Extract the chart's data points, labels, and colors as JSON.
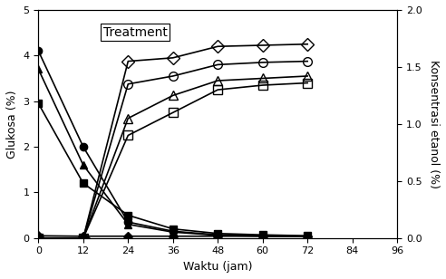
{
  "title": "Treatment",
  "xlabel": "Waktu (jam)",
  "ylabel_left": "Glukosa (%)",
  "ylabel_right": "Konsentrasi etanol (%)",
  "xlim": [
    0,
    96
  ],
  "ylim_left": [
    0,
    5
  ],
  "ylim_right": [
    0,
    2
  ],
  "xticks": [
    0,
    12,
    24,
    36,
    48,
    60,
    72,
    84,
    96
  ],
  "yticks_left": [
    0,
    1,
    2,
    3,
    4,
    5
  ],
  "yticks_right": [
    0,
    0.5,
    1.0,
    1.5,
    2.0
  ],
  "series": [
    {
      "name": "glucose_filled_circle",
      "x": [
        0,
        12,
        24,
        36,
        48,
        60,
        72
      ],
      "y": [
        4.1,
        2.0,
        0.35,
        0.15,
        0.07,
        0.05,
        0.04
      ],
      "marker": "o",
      "fillstyle": "full",
      "color": "black",
      "markersize": 6,
      "linewidth": 1.2
    },
    {
      "name": "glucose_filled_triangle",
      "x": [
        0,
        12,
        24,
        36,
        48,
        60,
        72
      ],
      "y": [
        3.7,
        1.6,
        0.3,
        0.13,
        0.06,
        0.04,
        0.03
      ],
      "marker": "^",
      "fillstyle": "full",
      "color": "black",
      "markersize": 6,
      "linewidth": 1.2
    },
    {
      "name": "glucose_filled_square",
      "x": [
        0,
        12,
        24,
        36,
        48,
        60,
        72
      ],
      "y": [
        2.95,
        1.2,
        0.5,
        0.2,
        0.1,
        0.07,
        0.05
      ],
      "marker": "s",
      "fillstyle": "full",
      "color": "black",
      "markersize": 6,
      "linewidth": 1.2
    },
    {
      "name": "glucose_filled_diamond",
      "x": [
        0,
        12,
        24,
        36,
        48,
        60,
        72
      ],
      "y": [
        0.05,
        0.04,
        0.04,
        0.04,
        0.04,
        0.04,
        0.04
      ],
      "marker": "D",
      "fillstyle": "full",
      "color": "black",
      "markersize": 5,
      "linewidth": 1.2
    },
    {
      "name": "ethanol_open_diamond",
      "x": [
        0,
        12,
        24,
        36,
        48,
        60,
        72
      ],
      "y": [
        0.0,
        0.0,
        1.55,
        1.58,
        1.68,
        1.69,
        1.7
      ],
      "marker": "D",
      "fillstyle": "none",
      "color": "black",
      "markersize": 7,
      "linewidth": 1.2,
      "axis": "right"
    },
    {
      "name": "ethanol_open_circle",
      "x": [
        0,
        12,
        24,
        36,
        48,
        60,
        72
      ],
      "y": [
        0.0,
        0.0,
        1.35,
        1.42,
        1.52,
        1.54,
        1.55
      ],
      "marker": "o",
      "fillstyle": "none",
      "color": "black",
      "markersize": 7,
      "linewidth": 1.2,
      "axis": "right"
    },
    {
      "name": "ethanol_open_triangle",
      "x": [
        0,
        12,
        24,
        36,
        48,
        60,
        72
      ],
      "y": [
        0.0,
        0.0,
        1.05,
        1.25,
        1.38,
        1.4,
        1.42
      ],
      "marker": "^",
      "fillstyle": "none",
      "color": "black",
      "markersize": 7,
      "linewidth": 1.2,
      "axis": "right"
    },
    {
      "name": "ethanol_open_square",
      "x": [
        0,
        12,
        24,
        36,
        48,
        60,
        72
      ],
      "y": [
        0.0,
        0.0,
        0.9,
        1.1,
        1.3,
        1.34,
        1.36
      ],
      "marker": "s",
      "fillstyle": "none",
      "color": "black",
      "markersize": 7,
      "linewidth": 1.2,
      "axis": "right"
    }
  ]
}
